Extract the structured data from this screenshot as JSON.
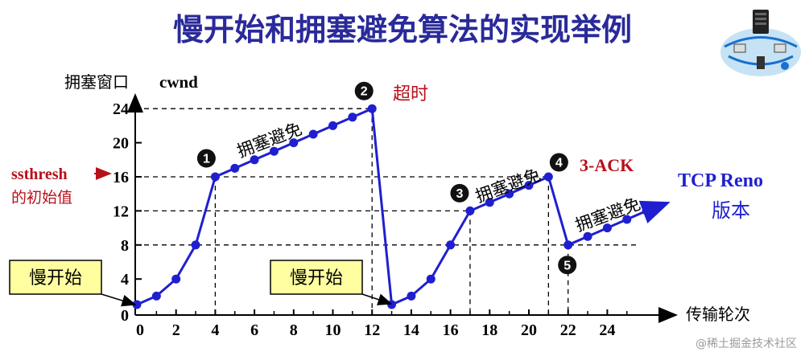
{
  "title": "慢开始和拥塞避免算法的实现举例",
  "y_axis_label": "拥塞窗口",
  "y_axis_unit": "cwnd",
  "x_axis_label": "传输轮次",
  "ssthresh_label": "ssthresh",
  "ssthresh_sub": "的初始值",
  "version_label": "TCP Reno",
  "version_sub": "版本",
  "watermark": "@稀土掘金技术社区",
  "slow_start_label": "慢开始",
  "congestion_avoid_label": "拥塞避免",
  "timeout_label": "超时",
  "ack_label": "3-ACK",
  "colors": {
    "title": "#2a2a9a",
    "line": "#1f1fd0",
    "red": "#b8101a",
    "box": "#ffffa0"
  },
  "chart_data": {
    "type": "line",
    "x_ticks": [
      "0",
      "2",
      "4",
      "6",
      "8",
      "10",
      "12",
      "14",
      "16",
      "18",
      "20",
      "22",
      "24"
    ],
    "y_ticks": [
      "0",
      "4",
      "8",
      "12",
      "16",
      "20",
      "24"
    ],
    "xlim": [
      0,
      27
    ],
    "ylim": [
      0,
      26
    ],
    "series": [
      {
        "x": [
          0,
          1,
          2,
          3,
          4,
          5,
          6,
          7,
          8,
          9,
          10,
          11,
          12,
          13,
          14,
          15,
          16,
          17,
          18,
          19,
          20,
          21,
          22,
          23,
          24,
          25,
          26
        ],
        "y": [
          1,
          2,
          4,
          8,
          16,
          17,
          18,
          19,
          20,
          21,
          22,
          23,
          24,
          1,
          2,
          4,
          8,
          12,
          13,
          14,
          15,
          16,
          8,
          9,
          10,
          11,
          12
        ]
      }
    ],
    "reference_lines": {
      "h": [
        24,
        16,
        12,
        8
      ],
      "v": [
        4,
        12,
        17,
        21,
        22
      ]
    },
    "markers": [
      {
        "id": "1",
        "x": 4,
        "y": 16
      },
      {
        "id": "2",
        "x": 12,
        "y": 24
      },
      {
        "id": "3",
        "x": 17,
        "y": 12
      },
      {
        "id": "4",
        "x": 21,
        "y": 16
      },
      {
        "id": "5",
        "x": 22,
        "y": 8
      }
    ]
  }
}
